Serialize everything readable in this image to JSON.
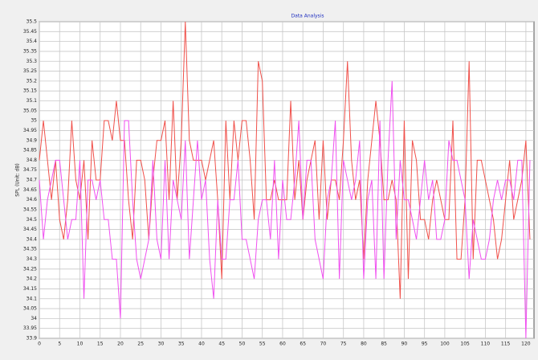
{
  "chart_data": {
    "type": "line",
    "title": "Data Analysis",
    "ylabel": "SPL  (Unit: dB)",
    "x": [
      0,
      1,
      2,
      3,
      4,
      5,
      6,
      7,
      8,
      9,
      10,
      11,
      12,
      13,
      14,
      15,
      16,
      17,
      18,
      19,
      20,
      21,
      22,
      23,
      24,
      25,
      26,
      27,
      28,
      29,
      30,
      31,
      32,
      33,
      34,
      35,
      36,
      37,
      38,
      39,
      40,
      41,
      42,
      43,
      44,
      45,
      46,
      47,
      48,
      49,
      50,
      51,
      52,
      53,
      54,
      55,
      56,
      57,
      58,
      59,
      60,
      61,
      62,
      63,
      64,
      65,
      66,
      67,
      68,
      69,
      70,
      71,
      72,
      73,
      74,
      75,
      76,
      77,
      78,
      79,
      80,
      81,
      82,
      83,
      84,
      85,
      86,
      87,
      88,
      89,
      90,
      91,
      92,
      93,
      94,
      95,
      96,
      97,
      98,
      99,
      100,
      101,
      102,
      103,
      104,
      105,
      106,
      107,
      108,
      109,
      110,
      111,
      112,
      113,
      114,
      115,
      116,
      117,
      118,
      119,
      120,
      121
    ],
    "series": [
      {
        "color": "#f0504a",
        "values": [
          34.8,
          35.0,
          34.8,
          34.6,
          34.8,
          34.5,
          34.4,
          34.6,
          35.0,
          34.7,
          34.6,
          34.8,
          34.4,
          34.9,
          34.7,
          34.7,
          35.0,
          35.0,
          34.9,
          35.1,
          34.9,
          34.9,
          34.6,
          34.4,
          34.8,
          34.8,
          34.7,
          34.4,
          34.7,
          34.9,
          34.9,
          35.0,
          34.6,
          35.1,
          34.6,
          34.9,
          35.5,
          34.9,
          34.8,
          34.8,
          34.8,
          34.7,
          34.8,
          34.9,
          34.6,
          34.2,
          35.0,
          34.6,
          35.0,
          34.8,
          35.0,
          35.0,
          34.8,
          34.5,
          35.3,
          35.2,
          34.6,
          34.6,
          34.7,
          34.6,
          34.6,
          34.6,
          35.1,
          34.6,
          34.8,
          34.5,
          34.7,
          34.8,
          34.9,
          34.5,
          34.9,
          34.5,
          34.7,
          34.7,
          34.6,
          34.9,
          35.3,
          34.8,
          34.6,
          34.7,
          34.3,
          34.7,
          34.9,
          35.1,
          34.9,
          34.6,
          34.6,
          34.7,
          34.6,
          34.1,
          35.0,
          34.2,
          34.9,
          34.8,
          34.5,
          34.5,
          34.4,
          34.6,
          34.7,
          34.6,
          34.5,
          34.5,
          35.0,
          34.3,
          34.3,
          34.6,
          35.3,
          34.3,
          34.8,
          34.8,
          34.7,
          34.6,
          34.5,
          34.3,
          34.4,
          34.6,
          34.8,
          34.5,
          34.6,
          34.7,
          34.9,
          34.4
        ]
      },
      {
        "color": "#f050f0",
        "values": [
          34.7,
          34.4,
          34.6,
          34.7,
          34.8,
          34.8,
          34.6,
          34.4,
          34.5,
          34.5,
          34.8,
          34.1,
          34.7,
          34.7,
          34.6,
          34.7,
          34.5,
          34.5,
          34.3,
          34.3,
          34.0,
          35.0,
          35.0,
          34.6,
          34.3,
          34.2,
          34.3,
          34.4,
          34.8,
          34.4,
          34.3,
          34.8,
          34.3,
          34.7,
          34.6,
          34.5,
          34.9,
          34.3,
          34.6,
          34.9,
          34.6,
          34.7,
          34.3,
          34.1,
          34.6,
          34.3,
          34.3,
          34.6,
          34.6,
          34.8,
          34.4,
          34.4,
          34.3,
          34.2,
          34.5,
          34.6,
          34.6,
          34.4,
          34.8,
          34.3,
          34.7,
          34.5,
          34.5,
          34.7,
          35.0,
          34.5,
          34.8,
          34.8,
          34.4,
          34.3,
          34.2,
          34.6,
          34.7,
          35.0,
          34.2,
          34.8,
          34.7,
          34.6,
          34.7,
          34.9,
          34.2,
          34.6,
          34.7,
          34.2,
          35.0,
          34.2,
          34.8,
          35.2,
          34.4,
          34.8,
          34.6,
          34.6,
          34.5,
          34.4,
          34.6,
          34.8,
          34.6,
          34.7,
          34.4,
          34.4,
          34.5,
          34.9,
          34.8,
          34.8,
          34.7,
          34.6,
          34.2,
          34.5,
          34.4,
          34.3,
          34.3,
          34.4,
          34.6,
          34.7,
          34.6,
          34.7,
          34.7,
          34.6,
          34.8,
          34.8,
          33.9,
          34.8
        ]
      }
    ],
    "xlim": [
      0,
      122
    ],
    "ylim": [
      33.9,
      35.5
    ],
    "xticks": [
      0,
      5,
      10,
      15,
      20,
      25,
      30,
      35,
      40,
      45,
      50,
      55,
      60,
      65,
      70,
      75,
      80,
      85,
      90,
      95,
      100,
      105,
      110,
      115,
      120
    ],
    "yticks": [
      33.9,
      33.95,
      34,
      34.05,
      34.1,
      34.15,
      34.2,
      34.25,
      34.3,
      34.35,
      34.4,
      34.45,
      34.5,
      34.55,
      34.6,
      34.65,
      34.7,
      34.75,
      34.8,
      34.85,
      34.9,
      34.95,
      35,
      35.05,
      35.1,
      35.15,
      35.2,
      35.25,
      35.3,
      35.35,
      35.4,
      35.45,
      35.5
    ],
    "grid": true
  }
}
